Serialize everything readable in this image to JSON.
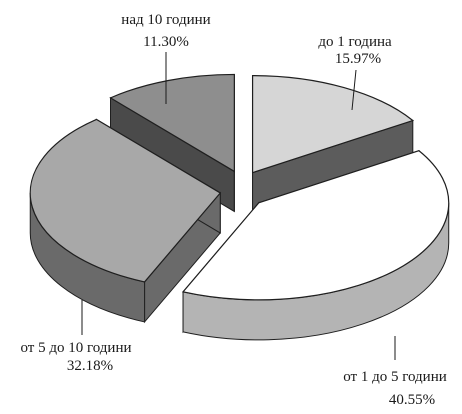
{
  "chart_data": {
    "type": "pie",
    "title": "",
    "style": "3d-exploded",
    "slices": [
      {
        "name": "до 1 година",
        "value": 15.97,
        "label": "15.97%",
        "top_color": "#d6d6d6",
        "side_color": "#5c5c5c"
      },
      {
        "name": "от 1 до 5 години",
        "value": 40.55,
        "label": "40.55%",
        "top_color": "#ffffff",
        "side_color": "#b4b4b4"
      },
      {
        "name": "от 5 до 10 години",
        "value": 32.18,
        "label": "32.18%",
        "top_color": "#a8a8a8",
        "side_color": "#6a6a6a"
      },
      {
        "name": "над 10 години",
        "value": 11.3,
        "label": "11.30%",
        "top_color": "#8e8e8e",
        "side_color": "#4a4a4a"
      }
    ]
  }
}
